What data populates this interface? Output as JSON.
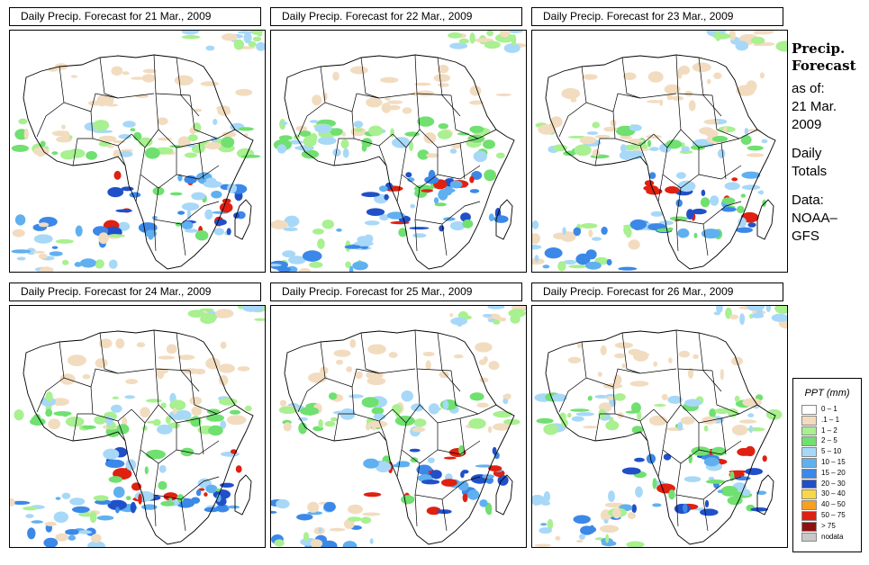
{
  "panels": [
    {
      "title": "Daily Precip. Forecast for  21 Mar., 2009",
      "seed": 11
    },
    {
      "title": "Daily Precip. Forecast for  22 Mar., 2009",
      "seed": 23
    },
    {
      "title": "Daily Precip. Forecast for  23 Mar., 2009",
      "seed": 37
    },
    {
      "title": "Daily Precip. Forecast for  24 Mar., 2009",
      "seed": 41
    },
    {
      "title": "Daily Precip. Forecast for  25 Mar., 2009",
      "seed": 53
    },
    {
      "title": "Daily Precip. Forecast for  26 Mar., 2009",
      "seed": 67
    }
  ],
  "side": {
    "heading1": "Precip.",
    "heading2": "Forecast",
    "asof1": "as of:",
    "asof2": "21 Mar.",
    "asof3": "2009",
    "daily1": "Daily",
    "daily2": "Totals",
    "data1": "Data:",
    "data2": "NOAA–",
    "data3": "GFS"
  },
  "legend": {
    "title": "PPT (mm)",
    "items": [
      {
        "label": "0 – 1",
        "color": "#ffffff"
      },
      {
        "label": ".1 – 1",
        "color": "#f2dcc0"
      },
      {
        "label": "1 – 2",
        "color": "#a8f090"
      },
      {
        "label": "2 – 5",
        "color": "#70e070"
      },
      {
        "label": "5 – 10",
        "color": "#a8d8f8"
      },
      {
        "label": "10 – 15",
        "color": "#60b0f0"
      },
      {
        "label": "15 – 20",
        "color": "#3c88e8"
      },
      {
        "label": "20 – 30",
        "color": "#2050c8"
      },
      {
        "label": "30 – 40",
        "color": "#f8d848"
      },
      {
        "label": "40 – 50",
        "color": "#f8a020"
      },
      {
        "label": "50 – 75",
        "color": "#e02010"
      },
      {
        "label": "> 75",
        "color": "#901010"
      },
      {
        "label": "nodata",
        "color": "#c8c8c8"
      }
    ]
  }
}
